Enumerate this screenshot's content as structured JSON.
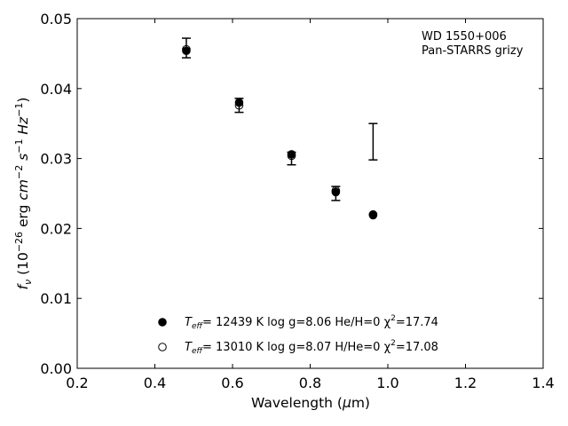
{
  "chart_data": {
    "type": "scatter",
    "xlabel": "Wavelength (μm)",
    "ylabel": "f_ν (10^-26 erg cm^-2 s^-1 Hz^-1)",
    "xlim": [
      0.2,
      1.4
    ],
    "ylim": [
      0.0,
      0.05
    ],
    "xticks": [
      "0.2",
      "0.4",
      "0.6",
      "0.8",
      "1.0",
      "1.2",
      "1.4"
    ],
    "xtick_values": [
      0.2,
      0.4,
      0.6,
      0.8,
      1.0,
      1.2,
      1.4
    ],
    "yticks": [
      "0.00",
      "0.01",
      "0.02",
      "0.03",
      "0.04",
      "0.05"
    ],
    "ytick_values": [
      0.0,
      0.01,
      0.02,
      0.03,
      0.04,
      0.05
    ],
    "grid": false,
    "legend_position": "bottom-center",
    "annotation": [
      "WD 1550+006",
      "Pan-STARRS grizy"
    ],
    "observed": [
      {
        "x": 0.481,
        "y": 0.0458,
        "yerr": 0.0014
      },
      {
        "x": 0.617,
        "y": 0.0376,
        "yerr": 0.001
      },
      {
        "x": 0.752,
        "y": 0.03,
        "yerr": 0.0009
      },
      {
        "x": 0.866,
        "y": 0.025,
        "yerr": 0.001
      },
      {
        "x": 0.962,
        "y": 0.0324,
        "yerr": 0.0026
      }
    ],
    "series": [
      {
        "marker": "filled",
        "label_parts": [
          "T",
          "eff",
          "= 12439 K  log g=8.06  He/H=0  χ",
          "2",
          "=17.74"
        ],
        "x": [
          0.481,
          0.617,
          0.752,
          0.866,
          0.962
        ],
        "y": [
          0.0454,
          0.038,
          0.0306,
          0.0252,
          0.0219
        ]
      },
      {
        "marker": "open",
        "label_parts": [
          "T",
          "eff",
          "= 13010 K  log g=8.07  H/He=0  χ",
          "2",
          "=17.08"
        ],
        "x": [
          0.481,
          0.617,
          0.752,
          0.866,
          0.962
        ],
        "y": [
          0.0456,
          0.0376,
          0.0304,
          0.0254,
          0.022
        ]
      }
    ]
  }
}
